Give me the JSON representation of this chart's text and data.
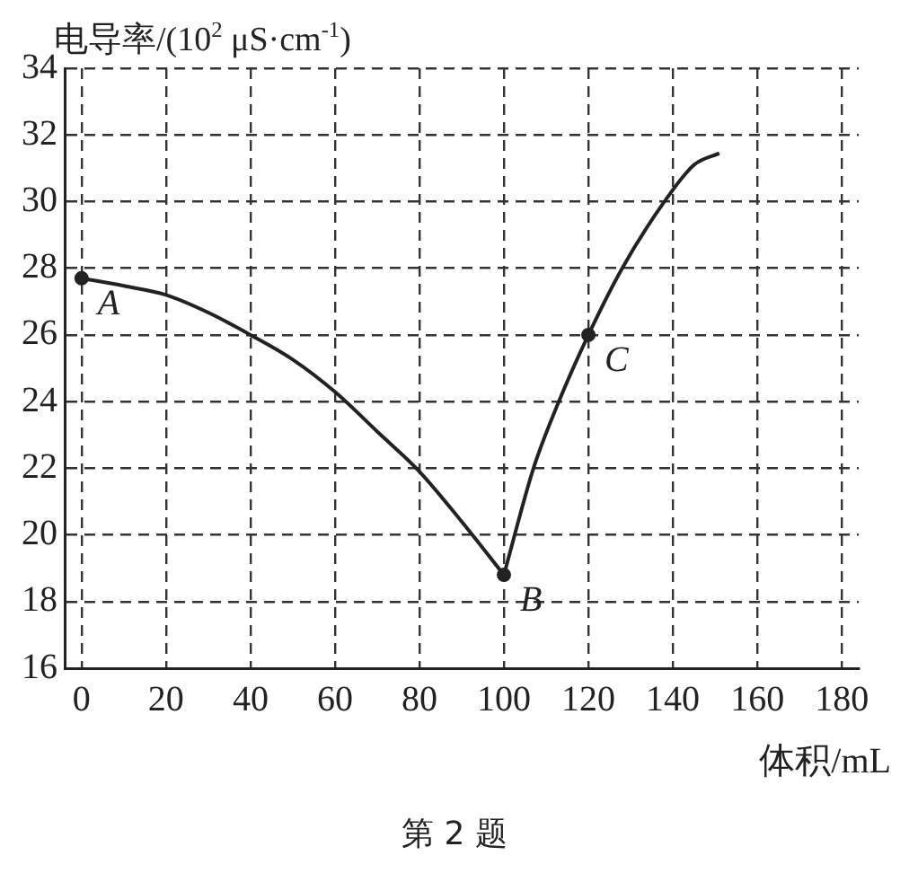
{
  "chart_data": {
    "type": "line",
    "ylabel": "电导率/(10$^{2}$ μS·cm$^{-1}$)",
    "xlabel": "体积/mL",
    "annotations": [
      "第 2 题",
      {
        "text": "A",
        "x": 0,
        "y": 27.7
      },
      {
        "text": "B",
        "x": 100,
        "y": 18.8
      },
      {
        "text": "C",
        "x": 120,
        "y": 26
      }
    ],
    "series": [
      {
        "color": "#222222",
        "marker": "none",
        "x": [
          0,
          10,
          20,
          30,
          40,
          50,
          60,
          70,
          80,
          90,
          100
        ],
        "values": [
          27.7,
          27.47,
          27.2,
          26.67,
          26,
          25.26,
          24.29,
          23.1,
          21.9,
          20.4,
          18.8
        ]
      },
      {
        "color": "#222222",
        "marker": "none",
        "x": [
          100,
          107,
          113,
          120,
          128,
          138,
          145,
          151
        ],
        "values": [
          18.8,
          22,
          24,
          26,
          28,
          30,
          31.1,
          31.45
        ]
      },
      {
        "type": "scatter",
        "color": "#222222",
        "marker": "circle",
        "x": [
          0,
          100,
          120
        ],
        "values": [
          27.7,
          18.8,
          26
        ]
      }
    ],
    "xlim": [
      -4,
      184
    ],
    "xticks": [
      0,
      20,
      40,
      60,
      80,
      100,
      120,
      140,
      160,
      180
    ],
    "ylim": [
      16,
      34
    ],
    "yticks": [
      16,
      18,
      20,
      22,
      24,
      26,
      28,
      30,
      32,
      34
    ],
    "grid": true,
    "legend": false
  }
}
